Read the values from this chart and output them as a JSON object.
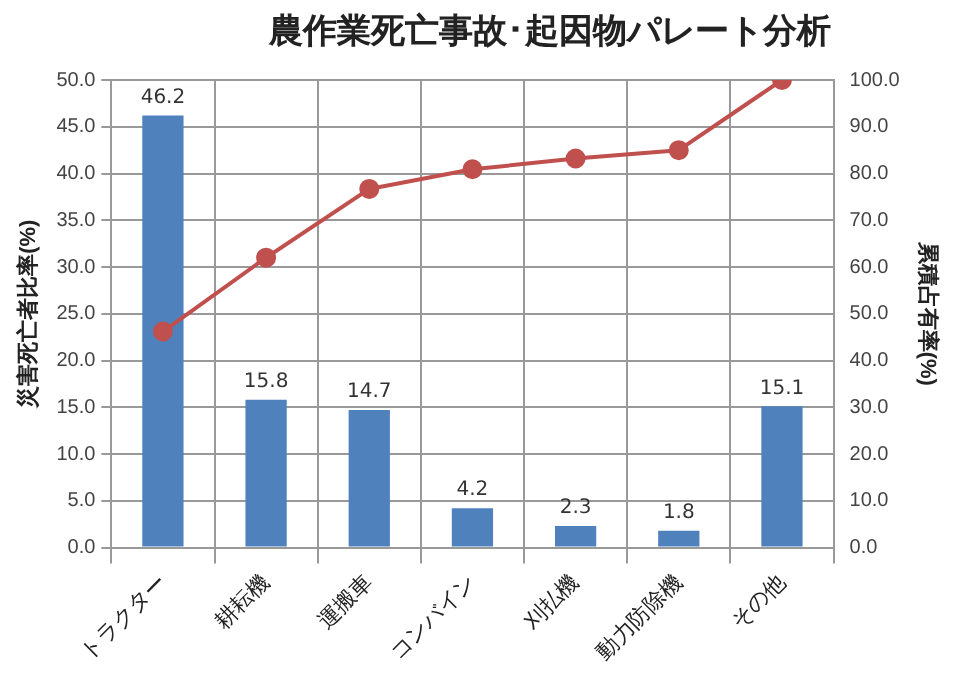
{
  "chart_data": {
    "type": "bar",
    "title": "農作業死亡事故･起因物パレート分析",
    "ylabel": "災害死亡者比率(%)",
    "y2label": "累積占有率(%)",
    "categories": [
      "トラクター",
      "耕耘機",
      "運搬車",
      "コンバイン",
      "刈払機",
      "動力防除機",
      "その他"
    ],
    "series": [
      {
        "color": "#4f81bd",
        "values": [
          46.2,
          15.8,
          14.7,
          4.2,
          2.3,
          1.8,
          15.1
        ],
        "value_labels": [
          "46.2",
          "15.8",
          "14.7",
          "4.2",
          "2.3",
          "1.8",
          "15.1"
        ]
      },
      {
        "type": "line",
        "axis": "y2",
        "color": "#c0504d",
        "values": [
          46.2,
          62.0,
          76.7,
          80.9,
          83.2,
          85.0,
          100.0
        ]
      }
    ],
    "ylim": [
      0,
      50
    ],
    "yticks": [
      {
        "value": 0,
        "label": "0.0"
      },
      {
        "value": 5,
        "label": "5.0"
      },
      {
        "value": 10,
        "label": "10.0"
      },
      {
        "value": 15,
        "label": "15.0"
      },
      {
        "value": 20,
        "label": "20.0"
      },
      {
        "value": 25,
        "label": "25.0"
      },
      {
        "value": 30,
        "label": "30.0"
      },
      {
        "value": 35,
        "label": "35.0"
      },
      {
        "value": 40,
        "label": "40.0"
      },
      {
        "value": 45,
        "label": "45.0"
      },
      {
        "value": 50,
        "label": "50.0"
      }
    ],
    "y2lim": [
      0,
      100
    ],
    "y2ticks": [
      {
        "value": 0,
        "label": "0.0"
      },
      {
        "value": 10,
        "label": "10.0"
      },
      {
        "value": 20,
        "label": "20.0"
      },
      {
        "value": 30,
        "label": "30.0"
      },
      {
        "value": 40,
        "label": "40.0"
      },
      {
        "value": 50,
        "label": "50.0"
      },
      {
        "value": 60,
        "label": "60.0"
      },
      {
        "value": 70,
        "label": "70.0"
      },
      {
        "value": 80,
        "label": "80.0"
      },
      {
        "value": 90,
        "label": "90.0"
      },
      {
        "value": 100,
        "label": "100.0"
      }
    ],
    "grid": true,
    "legend": false,
    "marker": "circle",
    "line_style": "solid"
  }
}
